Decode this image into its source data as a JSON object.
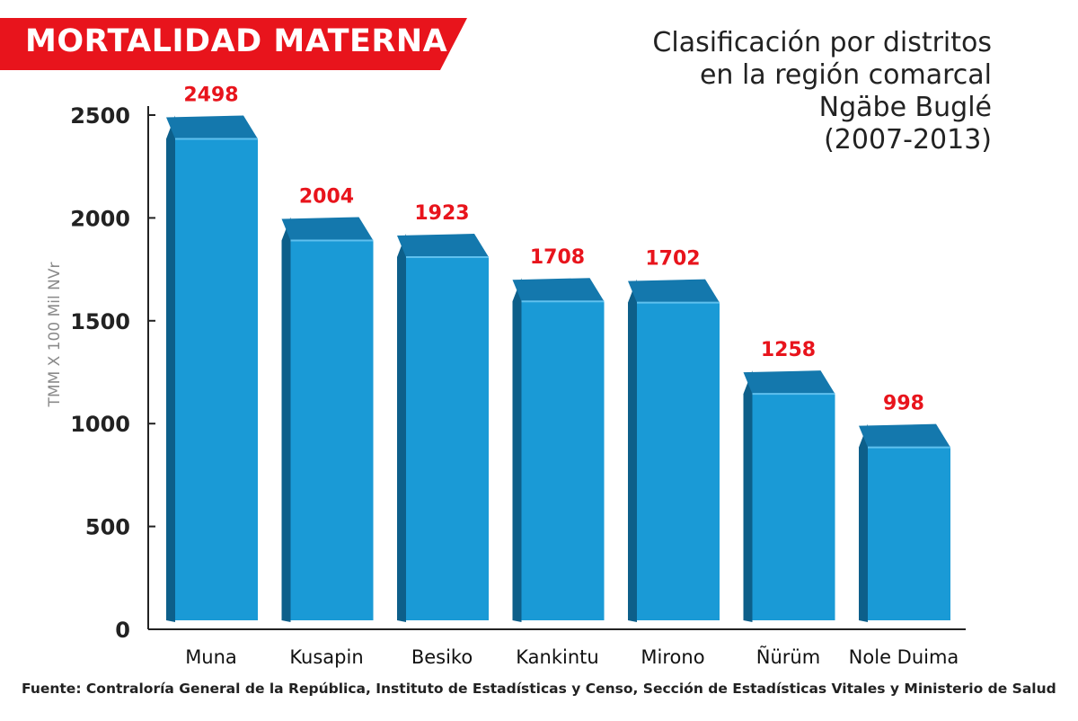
{
  "header": {
    "title": "MORTALIDAD MATERNA",
    "subtitle_lines": [
      "Clasificación por distritos",
      "en la región comarcal",
      "Ngäbe Buglé",
      "(2007-2013)"
    ]
  },
  "chart_data": {
    "type": "bar",
    "title": "MORTALIDAD MATERNA",
    "subtitle": "Clasificación por distritos en la región comarcal Ngäbe Buglé (2007-2013)",
    "xlabel": "",
    "ylabel": "TMM X 100 Mil NVr",
    "categories": [
      "Muna",
      "Kusapin",
      "Besiko",
      "Kankintu",
      "Mirono",
      "Ñürüm",
      "Nole Duima"
    ],
    "values": [
      2498,
      2004,
      1923,
      1708,
      1702,
      1258,
      998
    ],
    "data_labels": [
      "2498",
      "2004",
      "1923",
      "1708",
      "1702",
      "1258",
      "998"
    ],
    "yticks": [
      0,
      500,
      1000,
      1500,
      2000,
      2500
    ],
    "ylim": [
      0,
      2500
    ],
    "grid": false,
    "legend": "none",
    "style": "3d-bars"
  },
  "colors": {
    "banner": "#e8141c",
    "bar_front": "#1a9ad6",
    "bar_top": "#1478ad",
    "bar_side": "#0d5f8a",
    "value_label": "#e8141c",
    "axis": "#222222"
  },
  "source": "Fuente: Contraloría General de la República, Instituto de Estadísticas y Censo, Sección de Estadísticas Vitales y Ministerio de Salud"
}
